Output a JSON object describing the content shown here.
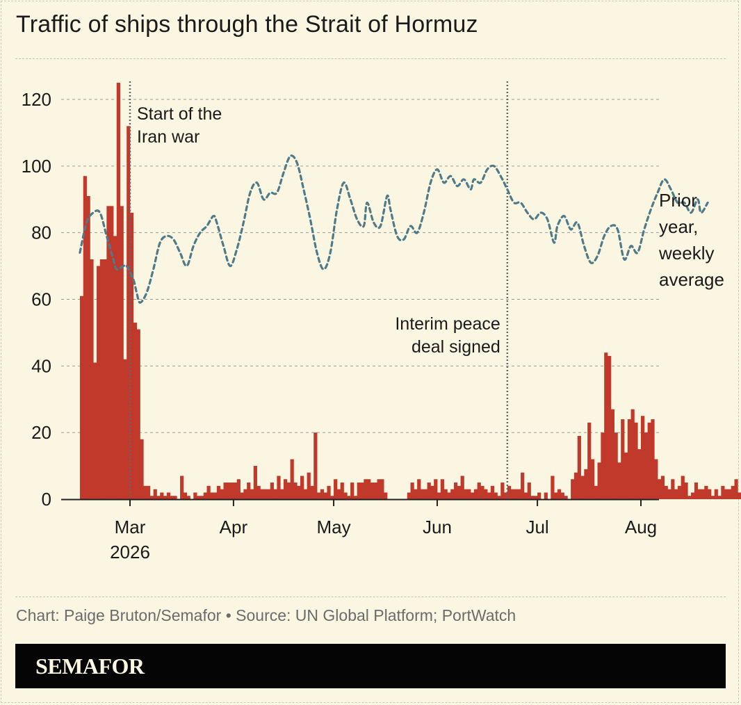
{
  "title": "Traffic of ships through the Strait of Hormuz",
  "credit": "Chart: Paige Bruton/Semafor • Source: UN Global Platform; PortWatch",
  "logo": "SEMAFOR",
  "colors": {
    "background": "#fbf6e2",
    "bars": "#c0392b",
    "prior_year_line": "#4f7a89",
    "grid": "#9a9a9a",
    "text": "#1a1a1a",
    "credit_text": "#6b6b6b",
    "logo_bar": "#050505"
  },
  "chart_data": {
    "type": "bar",
    "title": "Traffic of ships through the Strait of Hormuz",
    "xlabel": "",
    "ylabel": "",
    "ylim": [
      0,
      125
    ],
    "yticks": [
      0,
      20,
      40,
      60,
      80,
      100,
      120
    ],
    "grid": true,
    "x_domain": [
      "2026-02-14",
      "2026-08-04"
    ],
    "x_ticks": [
      {
        "date": "2026-03-01",
        "label": "Mar",
        "sublabel": "2026"
      },
      {
        "date": "2026-04-01",
        "label": "Apr",
        "sublabel": ""
      },
      {
        "date": "2026-05-01",
        "label": "May",
        "sublabel": ""
      },
      {
        "date": "2026-06-01",
        "label": "Jun",
        "sublabel": ""
      },
      {
        "date": "2026-07-01",
        "label": "Jul",
        "sublabel": ""
      },
      {
        "date": "2026-08-01",
        "label": "Aug",
        "sublabel": ""
      }
    ],
    "daily_bars": {
      "start_date": "2026-02-14",
      "values": [
        61,
        97,
        91,
        72,
        41,
        70,
        72,
        72,
        88,
        88,
        79,
        125,
        88,
        42,
        112,
        86,
        53,
        51,
        18,
        4,
        4,
        1,
        3,
        1,
        2,
        1,
        2,
        1,
        1,
        0,
        7,
        2,
        1,
        0,
        2,
        1,
        1,
        2,
        4,
        2,
        2,
        4,
        3,
        5,
        5,
        5,
        5,
        6,
        2,
        3,
        5,
        3,
        10,
        4,
        3,
        3,
        3,
        5,
        3,
        7,
        3,
        6,
        5,
        12,
        5,
        4,
        7,
        3,
        8,
        4,
        20,
        2,
        3,
        2,
        4,
        1,
        6,
        3,
        5,
        2,
        1,
        5,
        1,
        5,
        5,
        6,
        6,
        5,
        5,
        6,
        6,
        2,
        0,
        0,
        0,
        0,
        0,
        0,
        2,
        5,
        3,
        6,
        3,
        3,
        5,
        4,
        6,
        2,
        6,
        3,
        2,
        3,
        5,
        4,
        7,
        3,
        3,
        2,
        3,
        5,
        4,
        3,
        2,
        4,
        2,
        1,
        5,
        2,
        4,
        3,
        3,
        3,
        8,
        2,
        5,
        1,
        1,
        2,
        0,
        2,
        0,
        7,
        2,
        3,
        2,
        1,
        0,
        6,
        8,
        19,
        7,
        9,
        23,
        12,
        4,
        11,
        20,
        44,
        43,
        27,
        20,
        11,
        24,
        14,
        24,
        27,
        23,
        15,
        25,
        20,
        23,
        24,
        12,
        6,
        7,
        4,
        3,
        6,
        3,
        4,
        7,
        5,
        1,
        2,
        5,
        3,
        3,
        4,
        3,
        1,
        3,
        1,
        4,
        3,
        3,
        4,
        6,
        2,
        2,
        6,
        3,
        2
      ]
    },
    "series": [
      {
        "name": "Prior year, weekly average",
        "style": "dashed",
        "points": [
          {
            "date": "2026-02-14",
            "y": 74
          },
          {
            "date": "2026-02-16",
            "y": 83
          },
          {
            "date": "2026-02-18",
            "y": 86
          },
          {
            "date": "2026-02-20",
            "y": 86
          },
          {
            "date": "2026-02-22",
            "y": 79
          },
          {
            "date": "2026-02-24",
            "y": 72
          },
          {
            "date": "2026-02-25",
            "y": 69
          },
          {
            "date": "2026-02-27",
            "y": 70
          },
          {
            "date": "2026-02-28",
            "y": 70
          },
          {
            "date": "2026-03-02",
            "y": 66
          },
          {
            "date": "2026-03-03",
            "y": 62
          },
          {
            "date": "2026-03-04",
            "y": 59
          },
          {
            "date": "2026-03-06",
            "y": 62
          },
          {
            "date": "2026-03-08",
            "y": 69
          },
          {
            "date": "2026-03-10",
            "y": 77
          },
          {
            "date": "2026-03-12",
            "y": 79
          },
          {
            "date": "2026-03-14",
            "y": 78
          },
          {
            "date": "2026-03-16",
            "y": 74
          },
          {
            "date": "2026-03-18",
            "y": 70
          },
          {
            "date": "2026-03-20",
            "y": 76
          },
          {
            "date": "2026-03-22",
            "y": 80
          },
          {
            "date": "2026-03-24",
            "y": 82
          },
          {
            "date": "2026-03-26",
            "y": 85
          },
          {
            "date": "2026-03-27",
            "y": 83
          },
          {
            "date": "2026-03-29",
            "y": 76
          },
          {
            "date": "2026-03-31",
            "y": 70
          },
          {
            "date": "2026-04-02",
            "y": 75
          },
          {
            "date": "2026-04-04",
            "y": 83
          },
          {
            "date": "2026-04-06",
            "y": 92
          },
          {
            "date": "2026-04-08",
            "y": 95
          },
          {
            "date": "2026-04-10",
            "y": 90
          },
          {
            "date": "2026-04-12",
            "y": 92
          },
          {
            "date": "2026-04-14",
            "y": 92
          },
          {
            "date": "2026-04-16",
            "y": 98
          },
          {
            "date": "2026-04-18",
            "y": 103
          },
          {
            "date": "2026-04-20",
            "y": 101
          },
          {
            "date": "2026-04-22",
            "y": 93
          },
          {
            "date": "2026-04-24",
            "y": 84
          },
          {
            "date": "2026-04-26",
            "y": 74
          },
          {
            "date": "2026-04-28",
            "y": 69
          },
          {
            "date": "2026-04-30",
            "y": 74
          },
          {
            "date": "2026-05-02",
            "y": 87
          },
          {
            "date": "2026-05-04",
            "y": 95
          },
          {
            "date": "2026-05-06",
            "y": 90
          },
          {
            "date": "2026-05-08",
            "y": 84
          },
          {
            "date": "2026-05-10",
            "y": 82
          },
          {
            "date": "2026-05-11",
            "y": 89
          },
          {
            "date": "2026-05-13",
            "y": 83
          },
          {
            "date": "2026-05-15",
            "y": 82
          },
          {
            "date": "2026-05-17",
            "y": 91
          },
          {
            "date": "2026-05-18",
            "y": 87
          },
          {
            "date": "2026-05-20",
            "y": 79
          },
          {
            "date": "2026-05-22",
            "y": 78
          },
          {
            "date": "2026-05-24",
            "y": 82
          },
          {
            "date": "2026-05-26",
            "y": 80
          },
          {
            "date": "2026-05-28",
            "y": 86
          },
          {
            "date": "2026-05-30",
            "y": 95
          },
          {
            "date": "2026-06-01",
            "y": 99
          },
          {
            "date": "2026-06-03",
            "y": 95
          },
          {
            "date": "2026-06-05",
            "y": 97
          },
          {
            "date": "2026-06-07",
            "y": 94
          },
          {
            "date": "2026-06-09",
            "y": 96
          },
          {
            "date": "2026-06-11",
            "y": 93
          },
          {
            "date": "2026-06-12",
            "y": 96
          },
          {
            "date": "2026-06-14",
            "y": 95
          },
          {
            "date": "2026-06-16",
            "y": 99
          },
          {
            "date": "2026-06-18",
            "y": 100
          },
          {
            "date": "2026-06-20",
            "y": 97
          },
          {
            "date": "2026-06-22",
            "y": 93
          },
          {
            "date": "2026-06-24",
            "y": 89
          },
          {
            "date": "2026-06-26",
            "y": 89
          },
          {
            "date": "2026-06-28",
            "y": 86
          },
          {
            "date": "2026-06-30",
            "y": 84
          },
          {
            "date": "2026-07-02",
            "y": 86
          },
          {
            "date": "2026-07-04",
            "y": 84
          },
          {
            "date": "2026-07-06",
            "y": 77
          },
          {
            "date": "2026-07-07",
            "y": 82
          },
          {
            "date": "2026-07-09",
            "y": 85
          },
          {
            "date": "2026-07-11",
            "y": 81
          },
          {
            "date": "2026-07-13",
            "y": 83
          },
          {
            "date": "2026-07-15",
            "y": 76
          },
          {
            "date": "2026-07-17",
            "y": 71
          },
          {
            "date": "2026-07-19",
            "y": 73
          },
          {
            "date": "2026-07-21",
            "y": 79
          },
          {
            "date": "2026-07-23",
            "y": 82
          },
          {
            "date": "2026-07-25",
            "y": 81
          },
          {
            "date": "2026-07-27",
            "y": 72
          },
          {
            "date": "2026-07-29",
            "y": 76
          },
          {
            "date": "2026-07-31",
            "y": 74
          },
          {
            "date": "2026-08-02",
            "y": 81
          },
          {
            "date": "2026-08-04",
            "y": 87
          },
          {
            "date": "2026-08-06",
            "y": 92
          },
          {
            "date": "2026-08-08",
            "y": 96
          },
          {
            "date": "2026-08-10",
            "y": 93
          },
          {
            "date": "2026-08-12",
            "y": 89
          },
          {
            "date": "2026-08-14",
            "y": 89
          },
          {
            "date": "2026-08-16",
            "y": 86
          },
          {
            "date": "2026-08-18",
            "y": 90
          },
          {
            "date": "2026-08-19",
            "y": 86
          },
          {
            "date": "2026-08-21",
            "y": 89
          }
        ]
      }
    ],
    "annotations": [
      {
        "date": "2026-03-01",
        "lines": [
          "Start of the",
          "Iran war"
        ],
        "align": "left"
      },
      {
        "date": "2026-06-22",
        "lines": [
          "Interim peace",
          "deal signed"
        ],
        "align": "right"
      }
    ],
    "series_label": [
      "Prior",
      "year,",
      "weekly",
      "average"
    ]
  }
}
